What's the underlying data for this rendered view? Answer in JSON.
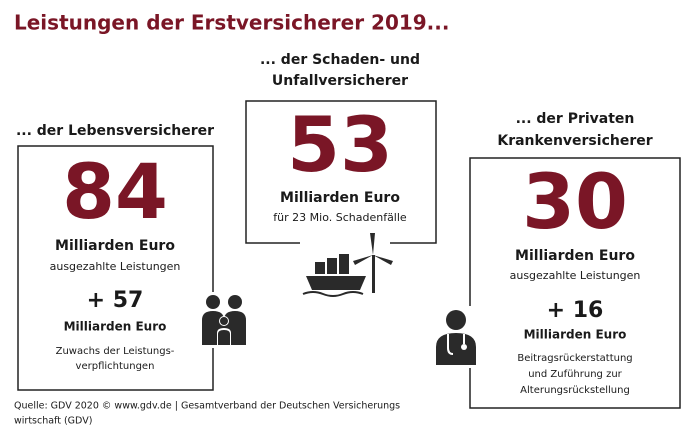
{
  "title": "Leistungen der Erstversicherer 2019...",
  "panels": [
    {
      "heading": [
        "... der Lebensversicherer"
      ],
      "value": "84",
      "unit": "Milliarden Euro",
      "description": "ausgezahlte Leistungen",
      "increase": "+ 57",
      "increase_unit": "Milliarden Euro",
      "increase_note": [
        "Zuwachs der Leistungs-",
        "verpflichtungen"
      ]
    },
    {
      "heading": [
        "... der Schaden- und",
        "Unfallversicherer"
      ],
      "value": "53",
      "unit": "Milliarden Euro",
      "description": "für 23 Mio. Schadenfälle"
    },
    {
      "heading": [
        "... der Privaten",
        "Krankenversicherer"
      ],
      "value": "30",
      "unit": "Milliarden Euro",
      "description": "ausgezahlte Leistungen",
      "increase": "+ 16",
      "increase_unit": "Milliarden Euro",
      "increase_note": [
        "Beitragsrückerstattung",
        "und Zuführung zur",
        "Alterungsrückstellung"
      ]
    }
  ],
  "source": [
    "Quelle: GDV 2020 © www.gdv.de | Gesamtverband der Deutschen Versicherungs",
    "wirtschaft (GDV)"
  ]
}
